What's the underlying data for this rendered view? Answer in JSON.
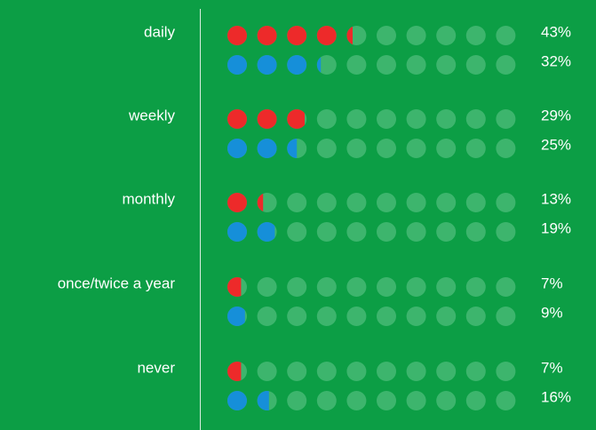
{
  "chart_data": {
    "type": "pictogram",
    "categories": [
      "daily",
      "weekly",
      "monthly",
      "once/twice a year",
      "never"
    ],
    "xlim": [
      0,
      100
    ],
    "series": [
      {
        "color": "#ed2a2a",
        "values": [
          43,
          29,
          13,
          7,
          7
        ],
        "value_labels": [
          "43%",
          "29%",
          "13%",
          "7%",
          "7%"
        ]
      },
      {
        "color": "#168fd9",
        "values": [
          32,
          25,
          19,
          9,
          16
        ],
        "value_labels": [
          "32%",
          "25%",
          "19%",
          "9%",
          "16%"
        ]
      }
    ]
  }
}
